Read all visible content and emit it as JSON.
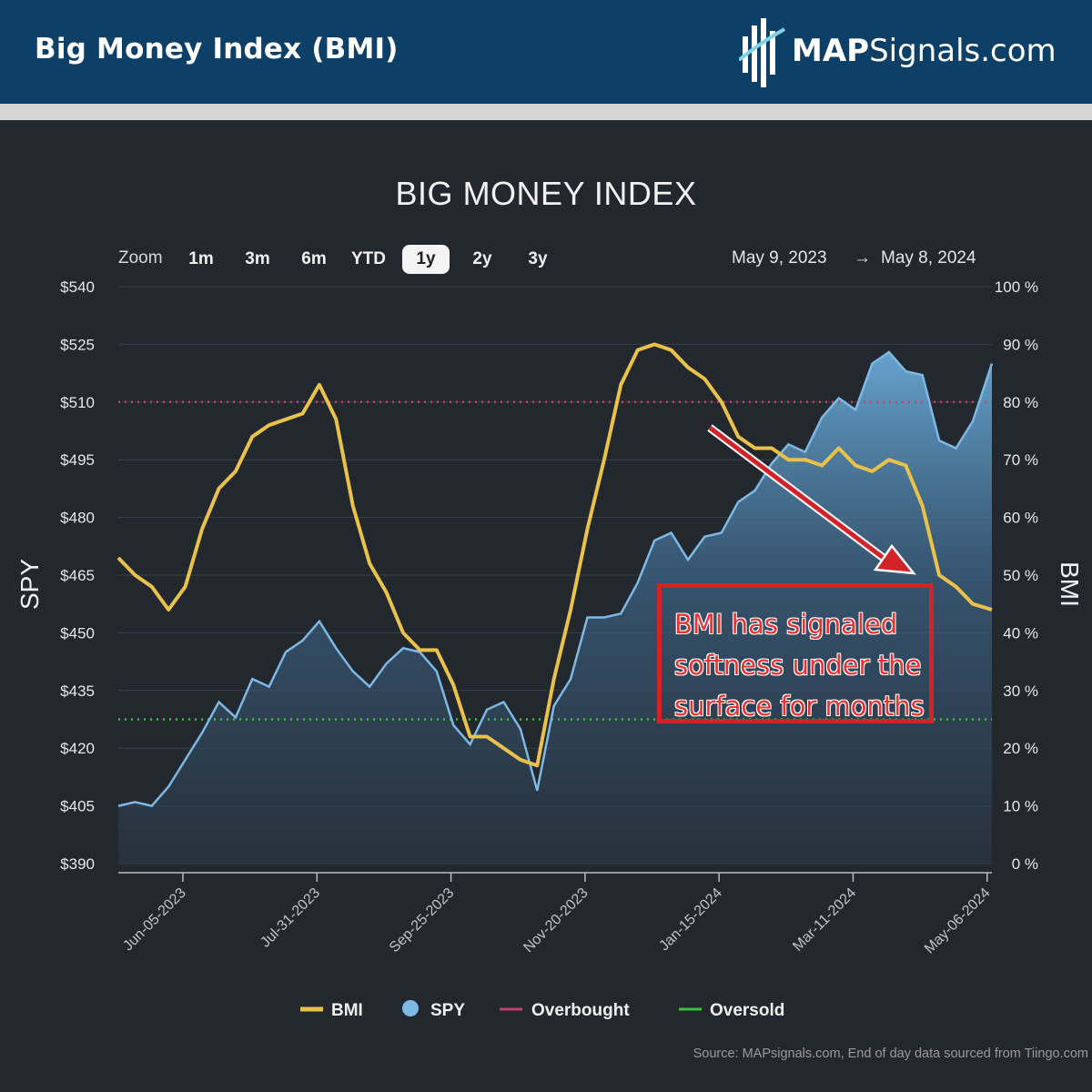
{
  "banner": {
    "title": "Big Money Index (BMI)",
    "brand_bold": "MAP",
    "brand_regular": "Signals.com",
    "brand_icon": "bar-chart-logo-icon"
  },
  "zoom": {
    "label": "Zoom",
    "options": [
      "1m",
      "3m",
      "6m",
      "YTD",
      "1y",
      "2y",
      "3y"
    ],
    "selected": "1y"
  },
  "range": {
    "from": "May 9, 2023",
    "arrow": "→",
    "to": "May 8, 2024"
  },
  "annotation": {
    "lines": [
      "BMI has signaled",
      "softness under the",
      "surface for months"
    ],
    "color": "#d3232a"
  },
  "source": "Source: MAPsignals.com, End of day data sourced from Tiingo.com",
  "colors": {
    "bmi": "#e8c24a",
    "spy": "#7db9e4",
    "overbought": "#c2406a",
    "oversold": "#3fbf3f",
    "banner": "#0e3f66"
  },
  "chart_data": {
    "type": "line",
    "title": "BIG MONEY INDEX",
    "ylabel_left": "SPY",
    "ylabel_right": "BMI",
    "y_left": {
      "min": 390,
      "max": 540,
      "ticks": [
        "$540",
        "$525",
        "$510",
        "$495",
        "$480",
        "$465",
        "$450",
        "$435",
        "$420",
        "$405",
        "$390"
      ]
    },
    "y_right": {
      "min": 0,
      "max": 100,
      "ticks": [
        "100 %",
        "90 %",
        "80 %",
        "70 %",
        "60 %",
        "50 %",
        "40 %",
        "30 %",
        "20 %",
        "10 %",
        "0 %"
      ]
    },
    "x_ticks": [
      "Jun-05-2023",
      "Jul-31-2023",
      "Sep-25-2023",
      "Nov-20-2023",
      "Jan-15-2024",
      "Mar-11-2024",
      "May-06-2024"
    ],
    "x_range": [
      "2023-05-09",
      "2024-05-08"
    ],
    "overbought": 80,
    "oversold": 25,
    "legend": [
      "BMI",
      "SPY",
      "Overbought",
      "Oversold"
    ],
    "legend_position": "bottom",
    "series": [
      {
        "name": "BMI",
        "axis": "right",
        "points": [
          [
            "2023-05-09",
            53
          ],
          [
            "2023-05-16",
            50
          ],
          [
            "2023-05-23",
            48
          ],
          [
            "2023-05-30",
            44
          ],
          [
            "2023-06-06",
            48
          ],
          [
            "2023-06-13",
            58
          ],
          [
            "2023-06-20",
            65
          ],
          [
            "2023-06-27",
            68
          ],
          [
            "2023-07-04",
            74
          ],
          [
            "2023-07-11",
            76
          ],
          [
            "2023-07-18",
            77
          ],
          [
            "2023-07-25",
            78
          ],
          [
            "2023-08-01",
            83
          ],
          [
            "2023-08-08",
            77
          ],
          [
            "2023-08-15",
            62
          ],
          [
            "2023-08-22",
            52
          ],
          [
            "2023-08-29",
            47
          ],
          [
            "2023-09-05",
            40
          ],
          [
            "2023-09-12",
            37
          ],
          [
            "2023-09-19",
            37
          ],
          [
            "2023-09-26",
            31
          ],
          [
            "2023-10-03",
            22
          ],
          [
            "2023-10-10",
            22
          ],
          [
            "2023-10-17",
            20
          ],
          [
            "2023-10-24",
            18
          ],
          [
            "2023-10-31",
            17
          ],
          [
            "2023-11-07",
            32
          ],
          [
            "2023-11-14",
            44
          ],
          [
            "2023-11-21",
            58
          ],
          [
            "2023-11-28",
            70
          ],
          [
            "2023-12-05",
            83
          ],
          [
            "2023-12-12",
            89
          ],
          [
            "2023-12-19",
            90
          ],
          [
            "2023-12-26",
            89
          ],
          [
            "2024-01-02",
            86
          ],
          [
            "2024-01-09",
            84
          ],
          [
            "2024-01-16",
            80
          ],
          [
            "2024-01-23",
            74
          ],
          [
            "2024-01-30",
            72
          ],
          [
            "2024-02-06",
            72
          ],
          [
            "2024-02-13",
            70
          ],
          [
            "2024-02-20",
            70
          ],
          [
            "2024-02-27",
            69
          ],
          [
            "2024-03-05",
            72
          ],
          [
            "2024-03-12",
            69
          ],
          [
            "2024-03-19",
            68
          ],
          [
            "2024-03-26",
            70
          ],
          [
            "2024-04-02",
            69
          ],
          [
            "2024-04-09",
            62
          ],
          [
            "2024-04-16",
            50
          ],
          [
            "2024-04-23",
            48
          ],
          [
            "2024-04-30",
            45
          ],
          [
            "2024-05-08",
            44
          ]
        ]
      },
      {
        "name": "SPY",
        "axis": "left",
        "points": [
          [
            "2023-05-09",
            405
          ],
          [
            "2023-05-16",
            406
          ],
          [
            "2023-05-23",
            405
          ],
          [
            "2023-05-30",
            410
          ],
          [
            "2023-06-06",
            417
          ],
          [
            "2023-06-13",
            424
          ],
          [
            "2023-06-20",
            432
          ],
          [
            "2023-06-27",
            428
          ],
          [
            "2023-07-04",
            438
          ],
          [
            "2023-07-11",
            436
          ],
          [
            "2023-07-18",
            445
          ],
          [
            "2023-07-25",
            448
          ],
          [
            "2023-08-01",
            453
          ],
          [
            "2023-08-08",
            446
          ],
          [
            "2023-08-15",
            440
          ],
          [
            "2023-08-22",
            436
          ],
          [
            "2023-08-29",
            442
          ],
          [
            "2023-09-05",
            446
          ],
          [
            "2023-09-12",
            445
          ],
          [
            "2023-09-19",
            440
          ],
          [
            "2023-09-26",
            426
          ],
          [
            "2023-10-03",
            421
          ],
          [
            "2023-10-10",
            430
          ],
          [
            "2023-10-17",
            432
          ],
          [
            "2023-10-24",
            425
          ],
          [
            "2023-10-31",
            409
          ],
          [
            "2023-11-07",
            431
          ],
          [
            "2023-11-14",
            438
          ],
          [
            "2023-11-21",
            454
          ],
          [
            "2023-11-28",
            454
          ],
          [
            "2023-12-05",
            455
          ],
          [
            "2023-12-12",
            463
          ],
          [
            "2023-12-19",
            474
          ],
          [
            "2023-12-26",
            476
          ],
          [
            "2024-01-02",
            469
          ],
          [
            "2024-01-09",
            475
          ],
          [
            "2024-01-16",
            476
          ],
          [
            "2024-01-23",
            484
          ],
          [
            "2024-01-30",
            487
          ],
          [
            "2024-02-06",
            494
          ],
          [
            "2024-02-13",
            499
          ],
          [
            "2024-02-20",
            497
          ],
          [
            "2024-02-27",
            506
          ],
          [
            "2024-03-05",
            511
          ],
          [
            "2024-03-12",
            508
          ],
          [
            "2024-03-19",
            520
          ],
          [
            "2024-03-26",
            523
          ],
          [
            "2024-04-02",
            518
          ],
          [
            "2024-04-09",
            517
          ],
          [
            "2024-04-16",
            500
          ],
          [
            "2024-04-23",
            498
          ],
          [
            "2024-04-30",
            505
          ],
          [
            "2024-05-08",
            520
          ]
        ]
      }
    ]
  }
}
